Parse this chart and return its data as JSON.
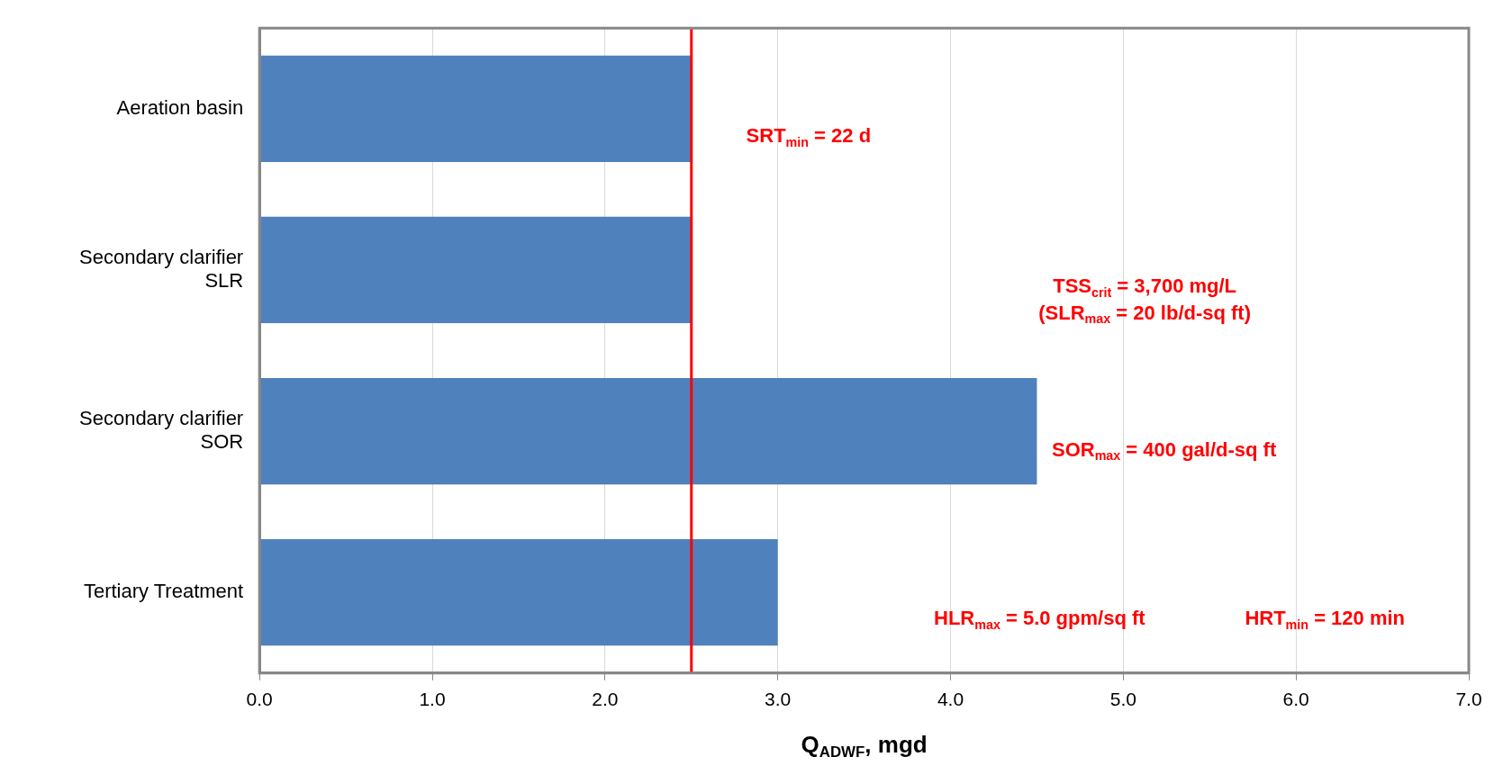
{
  "chart_data": {
    "type": "bar",
    "orientation": "horizontal",
    "categories": [
      "Aeration basin",
      "Secondary clarifier SLR",
      "Secondary clarifier SOR",
      "Tertiary Treatment"
    ],
    "values": [
      2.5,
      2.5,
      4.5,
      3.0
    ],
    "color": "#4f81bd",
    "xlabel": "Q$_{ADWF}$, mgd",
    "xlim": [
      0,
      7
    ],
    "xticks": [
      {
        "value": 0,
        "label": "0.0"
      },
      {
        "value": 1,
        "label": "1.0"
      },
      {
        "value": 2,
        "label": "2.0"
      },
      {
        "value": 3,
        "label": "3.0"
      },
      {
        "value": 4,
        "label": "4.0"
      },
      {
        "value": 5,
        "label": "5.0"
      },
      {
        "value": 6,
        "label": "6.0"
      },
      {
        "value": 7,
        "label": "7.0"
      }
    ],
    "grid": "x",
    "ref_lines": [
      {
        "axis": "x",
        "value": 2.5,
        "color": "#ff0000"
      }
    ],
    "annotations": [
      "SRT$_{min}$ = 22 d",
      "TSS$_{crit}$ = 3,700 mg/L",
      "(SLR$_{max}$ = 20 lb/d-sq ft)",
      "SOR$_{max}$ = 400 gal/d-sq ft",
      "HLR$_{max}$ = 5.0 gpm/sq ft",
      "HRT$_{min}$ = 120 min"
    ]
  }
}
